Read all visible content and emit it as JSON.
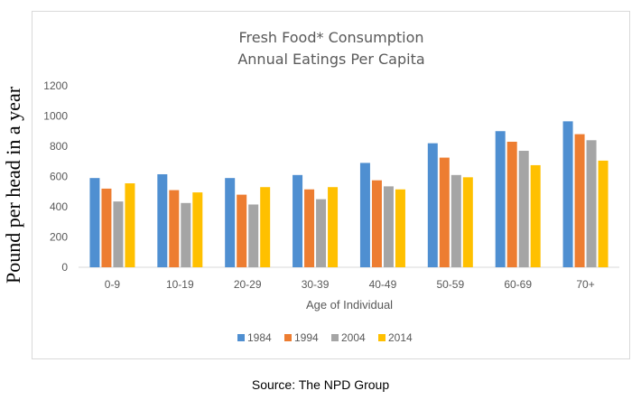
{
  "chart_data": {
    "type": "bar",
    "title": [
      "Fresh Food* Consumption",
      "Annual Eatings Per Capita"
    ],
    "xlabel": "Age of Individual",
    "ylabel": "Pound per head in a year",
    "ylim": [
      0,
      1200
    ],
    "yticks": [
      "0",
      "200",
      "400",
      "600",
      "800",
      "1000",
      "1200"
    ],
    "grid": false,
    "legend_position": "bottom",
    "categories": [
      "0-9",
      "10-19",
      "20-29",
      "30-39",
      "40-49",
      "50-59",
      "60-69",
      "70+"
    ],
    "series": [
      {
        "name": "1984",
        "color": "#4f8fd1",
        "values": [
          590,
          615,
          590,
          610,
          690,
          820,
          900,
          965
        ]
      },
      {
        "name": "1994",
        "color": "#ed7d31",
        "values": [
          520,
          510,
          480,
          515,
          575,
          725,
          830,
          880
        ]
      },
      {
        "name": "2004",
        "color": "#a5a5a5",
        "values": [
          435,
          425,
          415,
          450,
          535,
          610,
          770,
          840
        ]
      },
      {
        "name": "2014",
        "color": "#ffc000",
        "values": [
          555,
          495,
          530,
          530,
          515,
          595,
          675,
          705
        ]
      }
    ]
  },
  "source": "Source: The NPD Group"
}
